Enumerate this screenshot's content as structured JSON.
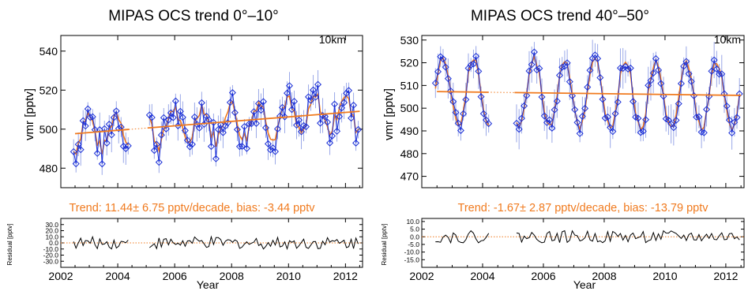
{
  "colors": {
    "series": "#1a2fd6",
    "series_light": "#9aa8e8",
    "fit": "#f07a1e",
    "axis": "#000000",
    "residual": "#000000",
    "trend_text": "#f07a1e"
  },
  "chart_data": [
    {
      "type": "line",
      "title": "MIPAS OCS trend   0°–10°",
      "xlabel": "Year",
      "ylabel": "vmr [pptv]",
      "altitude_label": "10km",
      "xlim": [
        2002,
        2012.6
      ],
      "ylim": [
        470,
        548
      ],
      "xticks": [
        2002,
        2004,
        2006,
        2008,
        2010,
        2012
      ],
      "yticks": [
        480,
        500,
        520,
        540
      ],
      "trend_text": "Trend: 11.44± 6.75 pptv/decade, bias: -3.44 pptv",
      "data_gap": [
        2004.4,
        2005.05
      ],
      "trend_line": {
        "segments": [
          [
            2002.5,
            2004.4
          ],
          [
            2005.05,
            2012.5
          ]
        ],
        "y_at_x0": 497.7,
        "x0": 2002.5,
        "slope_per_year": 1.144,
        "bias": -3.44
      },
      "season_amplitude": 9,
      "season_phase": 0.3,
      "noise_amplitude": 10,
      "residual": {
        "ylabel": "Residual [pptv]",
        "ylim": [
          -40,
          40
        ],
        "yticks": [
          -30,
          -20,
          -10,
          0,
          10,
          20,
          30
        ],
        "yticklabels": [
          "-30.0",
          "-20.0",
          "-10.0",
          "0.0",
          "10.0",
          "20.0",
          "30.0"
        ],
        "amplitude": 10
      }
    },
    {
      "type": "line",
      "title": "MIPAS OCS trend  40°–50°",
      "xlabel": "Year",
      "ylabel": "vmr [pptv]",
      "altitude_label": "10km",
      "xlim": [
        2002,
        2012.6
      ],
      "ylim": [
        465,
        532
      ],
      "xticks": [
        2002,
        2004,
        2006,
        2008,
        2010,
        2012
      ],
      "yticks": [
        470,
        480,
        490,
        500,
        510,
        520,
        530
      ],
      "trend_text": "Trend: -1.67± 2.87 pptv/decade, bias: -13.79 pptv",
      "data_gap": [
        2004.2,
        2005.05
      ],
      "trend_line": {
        "segments": [
          [
            2002.5,
            2004.2
          ],
          [
            2005.05,
            2012.5
          ]
        ],
        "y_at_x0": 507.3,
        "x0": 2002.5,
        "slope_per_year": -0.167,
        "bias": -13.79
      },
      "season_amplitude": 15,
      "season_phase": 0.55,
      "noise_amplitude": 4,
      "residual": {
        "ylabel": "Residual [pptv]",
        "ylim": [
          -20,
          12
        ],
        "yticks": [
          -15,
          -10,
          -5,
          0,
          5,
          10
        ],
        "yticklabels": [
          "-15.0",
          "-10.0",
          "-5.0",
          "0.0",
          "5.0",
          "10.0"
        ],
        "amplitude": 4
      }
    }
  ]
}
